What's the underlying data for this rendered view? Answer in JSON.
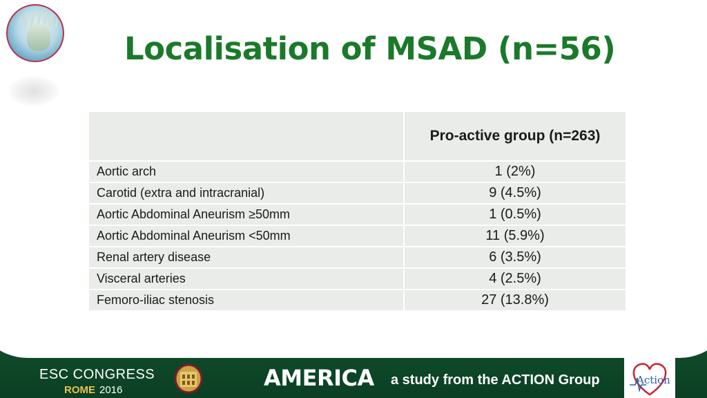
{
  "title": "Localisation of MSAD (n=56)",
  "table": {
    "column_header": "Pro-active group (n=263)",
    "rows": [
      {
        "label": "Aortic arch",
        "value": "1 (2%)"
      },
      {
        "label": "Carotid (extra and intracranial)",
        "value": "9 (4.5%)"
      },
      {
        "label": "Aortic Abdominal Aneurism ≥50mm",
        "value": "1 (0.5%)"
      },
      {
        "label": "Aortic Abdominal Aneurism <50mm",
        "value": "11 (5.9%)"
      },
      {
        "label": "Renal artery disease",
        "value": "6 (3.5%)"
      },
      {
        "label": "Visceral arteries",
        "value": "4 (2.5%)"
      },
      {
        "label": "Femoro-iliac stenosis",
        "value": "27 (13.8%)"
      }
    ]
  },
  "footer": {
    "congress_name": "ESC CONGRESS",
    "congress_city": "ROME",
    "congress_year": "2016",
    "study_name": "AMERICA",
    "study_subtitle": "a study from the ACTION Group",
    "action_logo_text": "Action"
  },
  "colors": {
    "title": "#1a7a2a",
    "footer": "#0f4a2a",
    "table_bg": "#e9ece8",
    "rome": "#e9c24b"
  }
}
